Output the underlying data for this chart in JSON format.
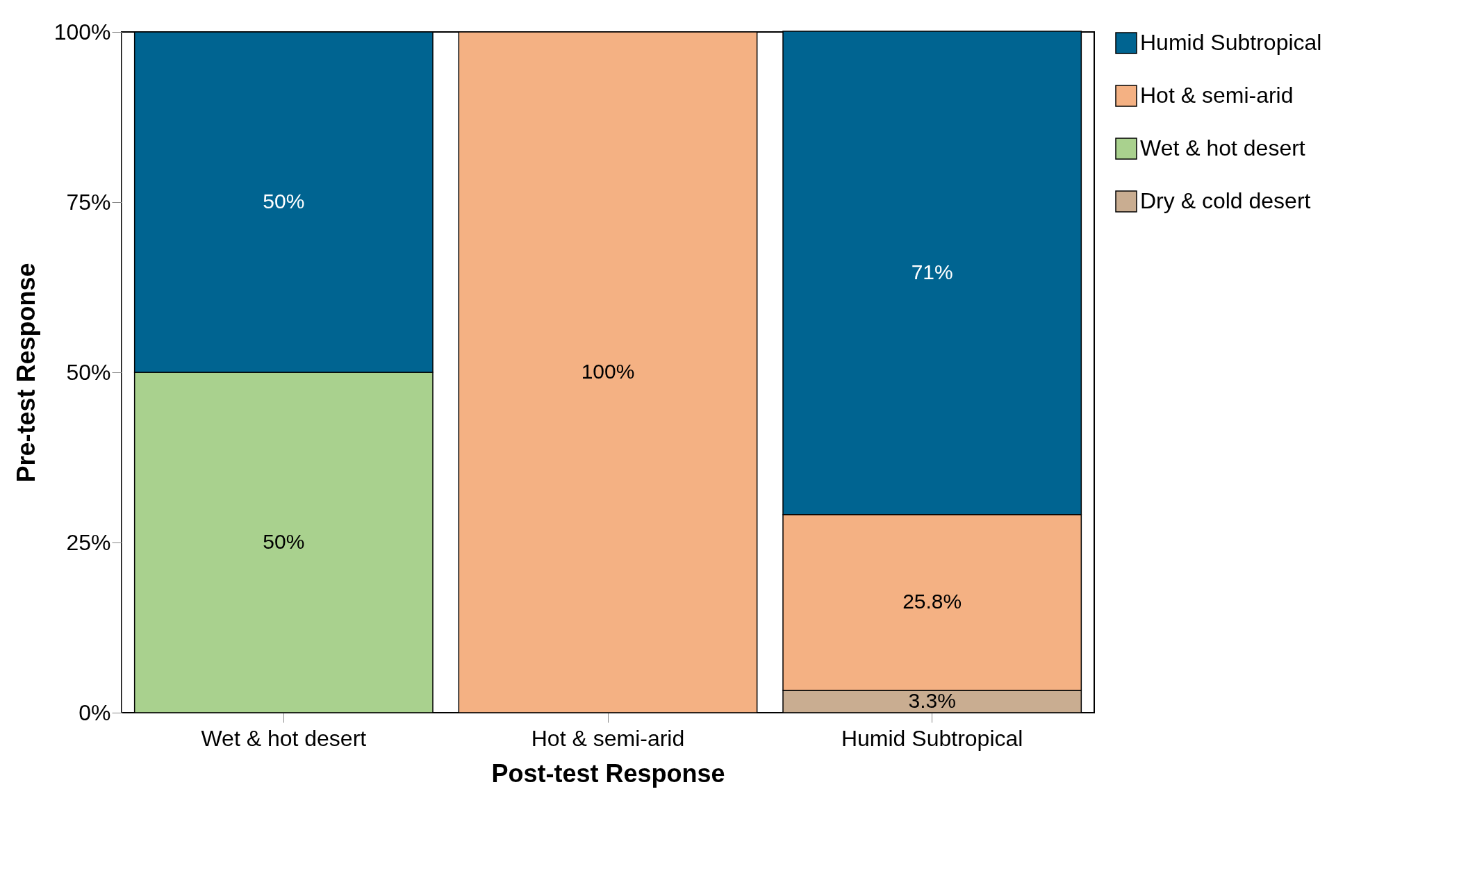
{
  "chart_data": {
    "type": "bar",
    "stacked": true,
    "xlabel": "Post-test Response",
    "ylabel": "Pre-test Response",
    "categories": [
      "Wet & hot desert",
      "Hot & semi-arid",
      "Humid Subtropical"
    ],
    "series": [
      {
        "name": "Dry & cold desert",
        "color": "#c9ad91",
        "values": [
          null,
          null,
          3.3
        ],
        "value_labels": [
          null,
          null,
          "3.3%"
        ]
      },
      {
        "name": "Wet & hot desert",
        "color": "#a9d18e",
        "values": [
          50,
          null,
          null
        ],
        "value_labels": [
          "50%",
          null,
          null
        ]
      },
      {
        "name": "Hot & semi-arid",
        "color": "#f4b183",
        "values": [
          null,
          100,
          25.8
        ],
        "value_labels": [
          null,
          "100%",
          "25.8%"
        ]
      },
      {
        "name": "Humid Subtropical",
        "color": "#006491",
        "values": [
          50,
          null,
          71
        ],
        "value_labels": [
          "50%",
          null,
          "71%"
        ]
      }
    ],
    "ylim": [
      0,
      100
    ],
    "yticks": [
      {
        "value": 0,
        "label": "0%"
      },
      {
        "value": 25,
        "label": "25%"
      },
      {
        "value": 50,
        "label": "50%"
      },
      {
        "value": 75,
        "label": "75%"
      },
      {
        "value": 100,
        "label": "100%"
      }
    ],
    "grid": false,
    "legend": "right"
  }
}
